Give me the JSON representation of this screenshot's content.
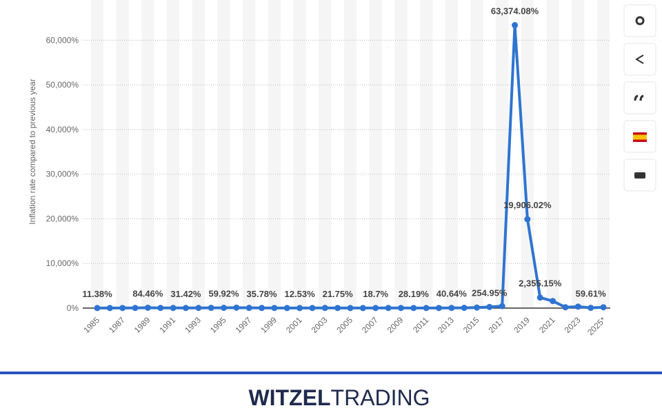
{
  "chart_data": {
    "type": "line",
    "y_axis_label": "Inflation rate compared to previous year",
    "categories": [
      "1985",
      null,
      "1987",
      null,
      "1989",
      null,
      "1991",
      null,
      "1993",
      null,
      "1995",
      null,
      "1997",
      null,
      "1999",
      null,
      "2001",
      null,
      "2003",
      null,
      "2005",
      null,
      "2007",
      null,
      "2009",
      null,
      "2011",
      null,
      "2013",
      null,
      "2015",
      null,
      "2017",
      null,
      "2019",
      null,
      "2021",
      null,
      "2023",
      null,
      "2025*"
    ],
    "values": [
      11.38,
      11.53,
      28.08,
      29.48,
      84.46,
      40.66,
      34.2,
      31.42,
      38.12,
      60.82,
      59.92,
      99.88,
      50.04,
      35.78,
      23.57,
      16.21,
      12.53,
      22.43,
      31.09,
      21.75,
      15.95,
      13.66,
      18.7,
      31.44,
      27.08,
      28.19,
      26.09,
      21.07,
      40.64,
      62.17,
      121.74,
      254.95,
      438.12,
      63374.08,
      19906.02,
      2355.15,
      1588.5,
      186.5,
      337.5,
      59.61,
      180
    ],
    "value_labels": [
      "11.38%",
      null,
      null,
      null,
      "84.46%",
      null,
      null,
      "31.42%",
      null,
      null,
      "59.92%",
      null,
      null,
      "35.78%",
      null,
      null,
      "12.53%",
      null,
      null,
      "21.75%",
      null,
      null,
      "18.7%",
      null,
      null,
      "28.19%",
      null,
      null,
      "40.64%",
      null,
      null,
      "254.95%",
      null,
      "63,374.08%",
      "19,906.02%",
      "2,355.15%",
      null,
      null,
      null,
      "59.61%",
      null
    ],
    "color": "#2f74d0",
    "ylim": [
      0,
      65000
    ],
    "yticks": [
      {
        "value": 0,
        "label": "0%"
      },
      {
        "value": 10000,
        "label": "10,000%"
      },
      {
        "value": 20000,
        "label": "20,000%"
      },
      {
        "value": 30000,
        "label": "30,000%"
      },
      {
        "value": 40000,
        "label": "40,000%"
      },
      {
        "value": 50000,
        "label": "50,000%"
      },
      {
        "value": 60000,
        "label": "60,000%"
      }
    ],
    "grid": true
  },
  "footer": {
    "brand_bold": "WITZEL",
    "brand_light": "TRADING"
  }
}
